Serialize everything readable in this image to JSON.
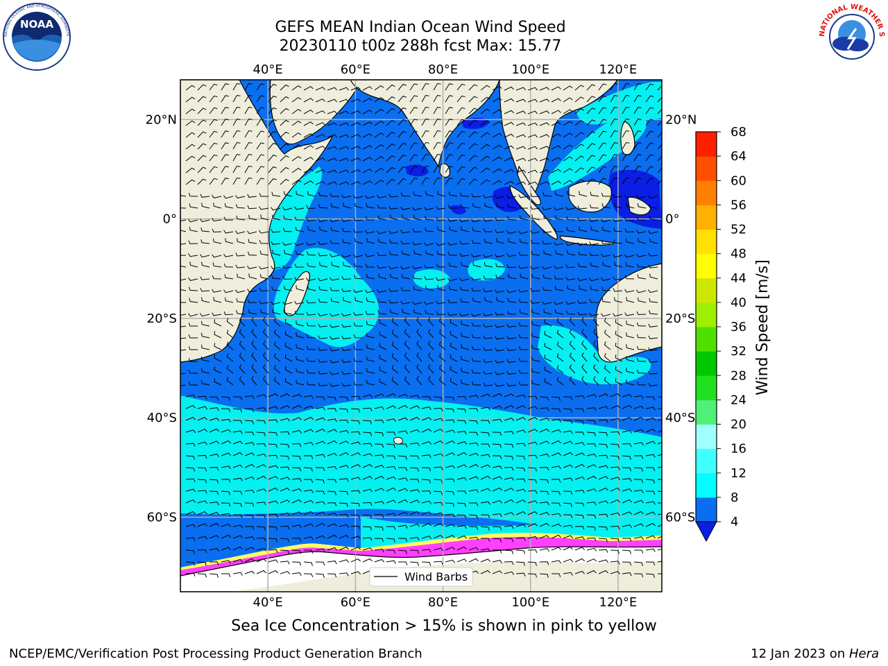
{
  "title": {
    "line1": "GEFS MEAN Indian Ocean Wind Speed",
    "line2": "20230110 t00z 288h fcst   Max: 15.77"
  },
  "map": {
    "lon_range": [
      20,
      130
    ],
    "lat_range": [
      -75,
      28
    ],
    "lon_ticks": [
      {
        "value": 40,
        "label": "40°E"
      },
      {
        "value": 60,
        "label": "60°E"
      },
      {
        "value": 80,
        "label": "80°E"
      },
      {
        "value": 100,
        "label": "100°E"
      },
      {
        "value": 120,
        "label": "120°E"
      }
    ],
    "lat_ticks": [
      {
        "value": 20,
        "label": "20°N"
      },
      {
        "value": 0,
        "label": "0°"
      },
      {
        "value": -20,
        "label": "20°S"
      },
      {
        "value": -40,
        "label": "40°S"
      },
      {
        "value": -60,
        "label": "60°S"
      }
    ],
    "grid": true,
    "legend": {
      "label": "Wind Barbs",
      "placement": "bottom-center"
    },
    "colors": {
      "land": "#efeedc",
      "ocean_4_8": "#0a6ef0",
      "ocean_below_4": "#0a1ee6",
      "ocean_8_12": "#05f0f0",
      "ice": "#ff40ff",
      "ice_edge": "#ffff60",
      "antarctica": "#ffffff"
    }
  },
  "colorbar": {
    "title": "Wind Speed [m/s]",
    "extend": "min",
    "levels": [
      4,
      8,
      12,
      16,
      20,
      24,
      28,
      32,
      36,
      40,
      44,
      48,
      52,
      56,
      60,
      64,
      68
    ],
    "colors": [
      "#0a6ef0",
      "#00ffff",
      "#40ffff",
      "#a0ffff",
      "#50f078",
      "#20e020",
      "#00c800",
      "#50e000",
      "#a0ee00",
      "#cce800",
      "#ffff00",
      "#ffe000",
      "#ffb000",
      "#ff8000",
      "#ff5000",
      "#ff2000"
    ],
    "under_color": "#0a1ee6"
  },
  "note": "Sea Ice Concentration > 15% is shown in pink to yellow",
  "footer": {
    "left": "NCEP/EMC/Verification Post Processing Product Generation Branch",
    "date": "12 Jan 2023 on ",
    "machine": "Hera"
  },
  "logos": {
    "noaa": {
      "text": "NOAA",
      "ring_text": "NATIONAL OCEANIC AND ATMOSPHERIC ADMINISTRATION"
    },
    "nws": {
      "ring_text": "NATIONAL WEATHER SERVICE"
    }
  }
}
